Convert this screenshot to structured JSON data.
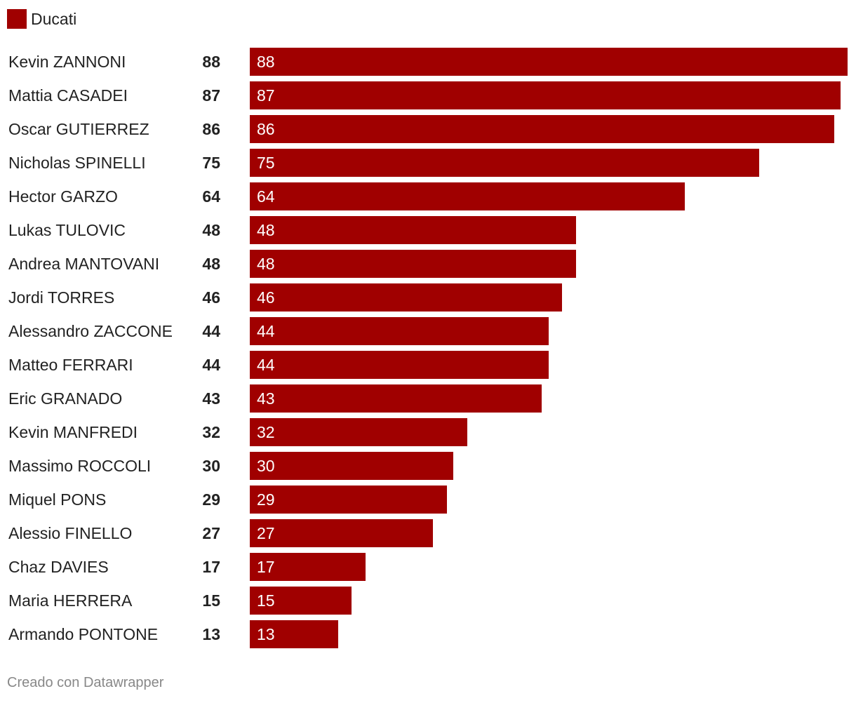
{
  "colors": {
    "bar": "#a00000",
    "text": "#222222",
    "footer": "#888888"
  },
  "legend": {
    "label": "Ducati"
  },
  "footer": {
    "credit": "Creado con Datawrapper"
  },
  "chart_data": {
    "type": "bar",
    "orientation": "horizontal",
    "series": [
      {
        "name": "Ducati",
        "values": [
          88,
          87,
          86,
          75,
          64,
          48,
          48,
          46,
          44,
          44,
          43,
          32,
          30,
          29,
          27,
          17,
          15,
          13
        ]
      }
    ],
    "categories": [
      "Kevin ZANNONI",
      "Mattia CASADEI",
      "Oscar GUTIERREZ",
      "Nicholas SPINELLI",
      "Hector GARZO",
      "Lukas TULOVIC",
      "Andrea MANTOVANI",
      "Jordi TORRES",
      "Alessandro ZACCONE",
      "Matteo FERRARI",
      "Eric GRANADO",
      "Kevin MANFREDI",
      "Massimo ROCCOLI",
      "Miquel PONS",
      "Alessio FINELLO",
      "Chaz DAVIES",
      "Maria HERRERA",
      "Armando PONTONE"
    ],
    "xlim": [
      0,
      88
    ],
    "legend": "top-left",
    "grid": false
  }
}
